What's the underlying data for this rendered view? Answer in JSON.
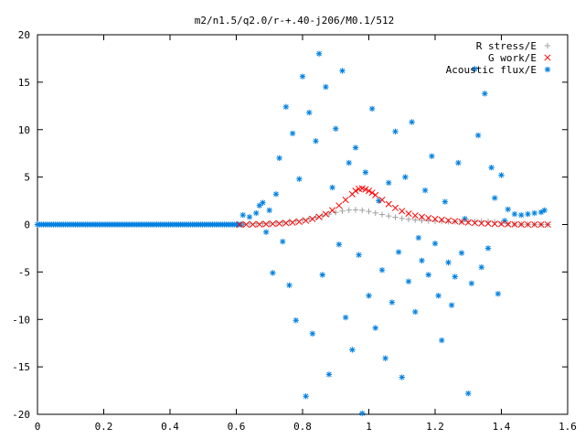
{
  "chart_data": {
    "type": "scatter",
    "title": "m2/n1.5/q2.0/r-+.40-j206/M0.1/512",
    "xlabel": "",
    "ylabel": "",
    "xlim": [
      0,
      1.6
    ],
    "ylim": [
      -20,
      20
    ],
    "xticks": [
      0,
      0.2,
      0.4,
      0.6,
      0.8,
      1,
      1.2,
      1.4,
      1.6
    ],
    "xtick_labels": [
      "0",
      "0.2",
      "0.4",
      "0.6",
      "0.8",
      "1",
      "1.2",
      "1.4",
      "1.6"
    ],
    "yticks": [
      -20,
      -15,
      -10,
      -5,
      0,
      5,
      10,
      15,
      20
    ],
    "ytick_labels": [
      "-20",
      "-15",
      "-10",
      "-5",
      "0",
      "5",
      "10",
      "15",
      "20"
    ],
    "grid": false,
    "legend_position": "top-right",
    "series": [
      {
        "name": "R stress/E",
        "marker": "plus",
        "color": "#a0a0a0",
        "points": [
          [
            0.62,
            0.05
          ],
          [
            0.64,
            0.06
          ],
          [
            0.66,
            0.08
          ],
          [
            0.68,
            0.1
          ],
          [
            0.7,
            0.13
          ],
          [
            0.72,
            0.17
          ],
          [
            0.74,
            0.22
          ],
          [
            0.76,
            0.3
          ],
          [
            0.78,
            0.38
          ],
          [
            0.8,
            0.48
          ],
          [
            0.82,
            0.6
          ],
          [
            0.84,
            0.75
          ],
          [
            0.86,
            0.92
          ],
          [
            0.88,
            1.1
          ],
          [
            0.9,
            1.28
          ],
          [
            0.92,
            1.42
          ],
          [
            0.94,
            1.52
          ],
          [
            0.96,
            1.55
          ],
          [
            0.98,
            1.5
          ],
          [
            1.0,
            1.38
          ],
          [
            1.02,
            1.22
          ],
          [
            1.04,
            1.05
          ],
          [
            1.06,
            0.9
          ],
          [
            1.08,
            0.76
          ],
          [
            1.1,
            0.64
          ],
          [
            1.12,
            0.55
          ],
          [
            1.14,
            0.48
          ],
          [
            1.16,
            0.42
          ],
          [
            1.18,
            0.38
          ],
          [
            1.2,
            0.35
          ],
          [
            1.22,
            0.33
          ],
          [
            1.24,
            0.31
          ],
          [
            1.26,
            0.3
          ],
          [
            1.28,
            0.3
          ],
          [
            1.3,
            0.31
          ],
          [
            1.32,
            0.32
          ],
          [
            1.34,
            0.34
          ],
          [
            1.36,
            0.33
          ],
          [
            1.38,
            0.25
          ],
          [
            1.4,
            0.15
          ],
          [
            1.42,
            0.08
          ],
          [
            1.44,
            0.04
          ],
          [
            1.46,
            0.02
          ],
          [
            1.48,
            0.01
          ],
          [
            1.5,
            0.01
          ],
          [
            1.52,
            0.0
          ],
          [
            1.54,
            0.0
          ]
        ]
      },
      {
        "name": "G work/E",
        "marker": "cross",
        "color": "#ff0000",
        "points": [
          [
            0.61,
            0.0
          ],
          [
            0.63,
            0.0
          ],
          [
            0.65,
            0.01
          ],
          [
            0.67,
            0.02
          ],
          [
            0.69,
            0.04
          ],
          [
            0.71,
            0.07
          ],
          [
            0.73,
            0.1
          ],
          [
            0.75,
            0.15
          ],
          [
            0.77,
            0.21
          ],
          [
            0.79,
            0.3
          ],
          [
            0.81,
            0.42
          ],
          [
            0.83,
            0.58
          ],
          [
            0.85,
            0.8
          ],
          [
            0.87,
            1.1
          ],
          [
            0.89,
            1.5
          ],
          [
            0.91,
            2.0
          ],
          [
            0.93,
            2.6
          ],
          [
            0.95,
            3.2
          ],
          [
            0.96,
            3.55
          ],
          [
            0.97,
            3.75
          ],
          [
            0.98,
            3.8
          ],
          [
            0.99,
            3.7
          ],
          [
            1.0,
            3.55
          ],
          [
            1.01,
            3.35
          ],
          [
            1.02,
            3.1
          ],
          [
            1.04,
            2.6
          ],
          [
            1.06,
            2.15
          ],
          [
            1.08,
            1.75
          ],
          [
            1.1,
            1.42
          ],
          [
            1.12,
            1.15
          ],
          [
            1.14,
            0.95
          ],
          [
            1.16,
            0.8
          ],
          [
            1.18,
            0.68
          ],
          [
            1.2,
            0.58
          ],
          [
            1.22,
            0.5
          ],
          [
            1.24,
            0.42
          ],
          [
            1.26,
            0.35
          ],
          [
            1.28,
            0.28
          ],
          [
            1.3,
            0.22
          ],
          [
            1.32,
            0.17
          ],
          [
            1.34,
            0.13
          ],
          [
            1.36,
            0.1
          ],
          [
            1.38,
            0.07
          ],
          [
            1.4,
            0.05
          ],
          [
            1.42,
            0.03
          ],
          [
            1.44,
            0.02
          ],
          [
            1.46,
            0.01
          ],
          [
            1.48,
            0.0
          ],
          [
            1.5,
            0.0
          ],
          [
            1.52,
            0.0
          ],
          [
            1.54,
            0.0
          ]
        ]
      },
      {
        "name": "Acoustic flux/E",
        "marker": "star",
        "color": "#0080e0",
        "points": [
          [
            0.62,
            1.0
          ],
          [
            0.64,
            0.8
          ],
          [
            0.66,
            1.2
          ],
          [
            0.67,
            2.0
          ],
          [
            0.68,
            2.3
          ],
          [
            0.69,
            -0.8
          ],
          [
            0.7,
            1.5
          ],
          [
            0.71,
            -5.1
          ],
          [
            0.72,
            3.2
          ],
          [
            0.73,
            7.0
          ],
          [
            0.74,
            -1.8
          ],
          [
            0.75,
            12.4
          ],
          [
            0.76,
            -6.4
          ],
          [
            0.77,
            9.6
          ],
          [
            0.78,
            -10.1
          ],
          [
            0.79,
            4.8
          ],
          [
            0.8,
            15.6
          ],
          [
            0.81,
            -18.1
          ],
          [
            0.82,
            11.8
          ],
          [
            0.83,
            -11.5
          ],
          [
            0.84,
            8.8
          ],
          [
            0.85,
            18.0
          ],
          [
            0.86,
            -5.3
          ],
          [
            0.87,
            14.5
          ],
          [
            0.88,
            -15.8
          ],
          [
            0.89,
            3.9
          ],
          [
            0.9,
            10.1
          ],
          [
            0.91,
            -2.1
          ],
          [
            0.92,
            16.2
          ],
          [
            0.93,
            -9.8
          ],
          [
            0.94,
            6.5
          ],
          [
            0.95,
            -13.2
          ],
          [
            0.96,
            8.1
          ],
          [
            0.97,
            -3.2
          ],
          [
            0.98,
            -19.9
          ],
          [
            0.99,
            5.5
          ],
          [
            1.0,
            -7.5
          ],
          [
            1.01,
            12.2
          ],
          [
            1.02,
            -10.9
          ],
          [
            1.03,
            2.5
          ],
          [
            1.04,
            -4.8
          ],
          [
            1.05,
            -14.1
          ],
          [
            1.06,
            4.4
          ],
          [
            1.07,
            -8.2
          ],
          [
            1.08,
            9.8
          ],
          [
            1.09,
            -2.9
          ],
          [
            1.1,
            -16.1
          ],
          [
            1.11,
            5.0
          ],
          [
            1.12,
            -6.0
          ],
          [
            1.13,
            10.8
          ],
          [
            1.14,
            -9.2
          ],
          [
            1.15,
            -1.4
          ],
          [
            1.16,
            -3.8
          ],
          [
            1.17,
            3.6
          ],
          [
            1.18,
            -5.3
          ],
          [
            1.19,
            7.2
          ],
          [
            1.2,
            -2.0
          ],
          [
            1.21,
            -7.5
          ],
          [
            1.22,
            -12.2
          ],
          [
            1.23,
            2.4
          ],
          [
            1.24,
            -4.0
          ],
          [
            1.25,
            -8.5
          ],
          [
            1.26,
            -5.5
          ],
          [
            1.27,
            6.5
          ],
          [
            1.28,
            -3.0
          ],
          [
            1.29,
            0.6
          ],
          [
            1.3,
            -17.8
          ],
          [
            1.31,
            -6.2
          ],
          [
            1.32,
            16.4
          ],
          [
            1.33,
            9.4
          ],
          [
            1.34,
            -4.5
          ],
          [
            1.35,
            13.8
          ],
          [
            1.36,
            -2.5
          ],
          [
            1.37,
            6.0
          ],
          [
            1.38,
            2.8
          ],
          [
            1.39,
            -7.3
          ],
          [
            1.4,
            5.2
          ],
          [
            1.41,
            0.4
          ],
          [
            1.42,
            1.6
          ],
          [
            1.44,
            1.1
          ],
          [
            1.46,
            1.0
          ],
          [
            1.48,
            1.1
          ],
          [
            1.5,
            1.2
          ],
          [
            1.52,
            1.3
          ],
          [
            1.53,
            1.5
          ]
        ]
      }
    ],
    "baseline_note": ""
  }
}
